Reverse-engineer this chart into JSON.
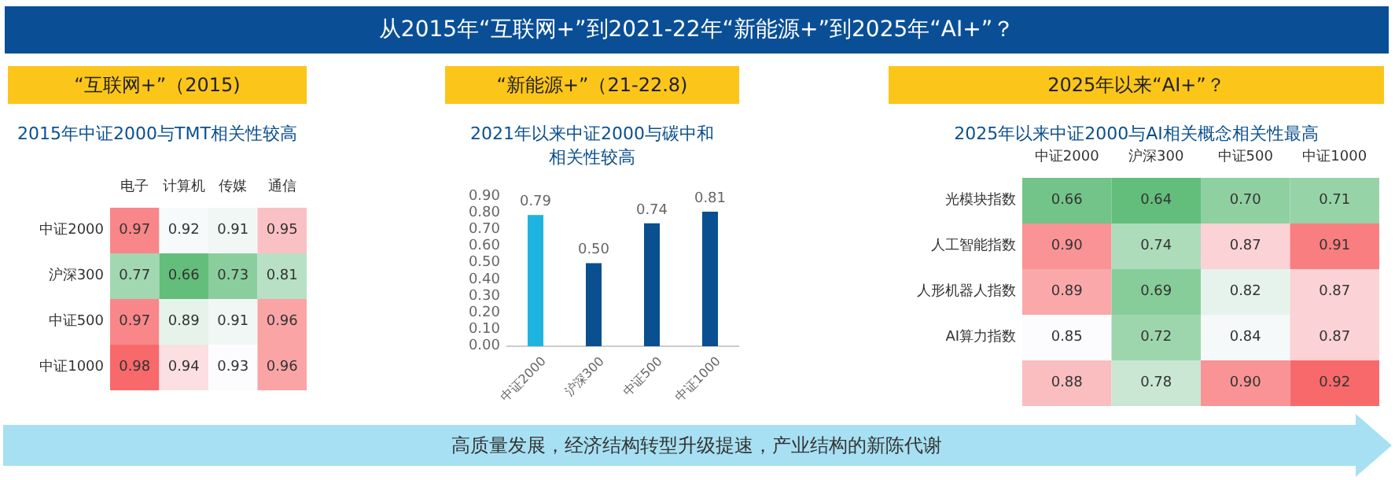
{
  "chart_data": [
    {
      "type": "heatmap",
      "title": "“互联网+”（2015)",
      "subtitle": "2015年中证2000与TMT相关性较高",
      "annotations": [
        "从2015年“互联网+”到2021-22年“新能源+”到2025年“AI+”？",
        "高质量发展，经济结构转型升级提速，产业结构的新陈代谢"
      ],
      "categories": [
        "电子",
        "计算机",
        "传媒",
        "通信"
      ],
      "y_categories": [
        "中证2000",
        "沪深300",
        "中证500",
        "中证1000"
      ],
      "cells": [
        [
          0.97,
          0.92,
          0.91,
          0.95
        ],
        [
          0.77,
          0.66,
          0.73,
          0.81
        ],
        [
          0.97,
          0.89,
          0.91,
          0.96
        ],
        [
          0.98,
          0.94,
          0.93,
          0.96
        ]
      ],
      "data_labels": true
    },
    {
      "type": "bar",
      "title": "“新能源+”（21-22.8)",
      "subtitle": "2021年以来中证2000与碳中和相关性较高",
      "categories": [
        "中证2000",
        "沪深300",
        "中证500",
        "中证1000"
      ],
      "values": [
        0.79,
        0.5,
        0.74,
        0.81
      ],
      "colors": [
        "#1fb4e0",
        "#0a4f8f",
        "#0a4f8f",
        "#0a4f8f"
      ],
      "value_labels": [
        "0.79",
        "0.50",
        "0.74",
        "0.81"
      ],
      "ylim": [
        0,
        0.9
      ],
      "yticks": [
        {
          "value": 0,
          "label": "0.00"
        },
        {
          "value": 0.1,
          "label": "0.10"
        },
        {
          "value": 0.2,
          "label": "0.20"
        },
        {
          "value": 0.3,
          "label": "0.30"
        },
        {
          "value": 0.4,
          "label": "0.40"
        },
        {
          "value": 0.5,
          "label": "0.50"
        },
        {
          "value": 0.6,
          "label": "0.60"
        },
        {
          "value": 0.7,
          "label": "0.70"
        },
        {
          "value": 0.8,
          "label": "0.80"
        },
        {
          "value": 0.9,
          "label": "0.90"
        }
      ],
      "grid": false
    },
    {
      "type": "heatmap",
      "title": "2025年以来“AI+”？",
      "subtitle": "2025年以来中证2000与AI相关概念相关性最高",
      "categories": [
        "中证2000",
        "沪深300",
        "中证500",
        "中证1000"
      ],
      "y_categories": [
        "光模块指数",
        "人工智能指数",
        "人形机器人指数",
        "AI算力指数",
        null
      ],
      "cells": [
        [
          0.66,
          0.64,
          0.7,
          0.71
        ],
        [
          0.9,
          0.74,
          0.87,
          0.91
        ],
        [
          0.89,
          0.69,
          0.82,
          0.87
        ],
        [
          0.85,
          0.72,
          0.84,
          0.87
        ],
        [
          0.88,
          0.78,
          0.9,
          0.92
        ]
      ],
      "cell_labels": [
        [
          "0.66",
          "0.64",
          "0.70",
          "0.71"
        ],
        [
          "0.90",
          "0.74",
          "0.87",
          "0.91"
        ],
        [
          "0.89",
          "0.69",
          "0.82",
          "0.87"
        ],
        [
          "0.85",
          "0.72",
          "0.84",
          "0.87"
        ],
        [
          "0.88",
          "0.78",
          "0.90",
          "0.92"
        ]
      ]
    }
  ]
}
